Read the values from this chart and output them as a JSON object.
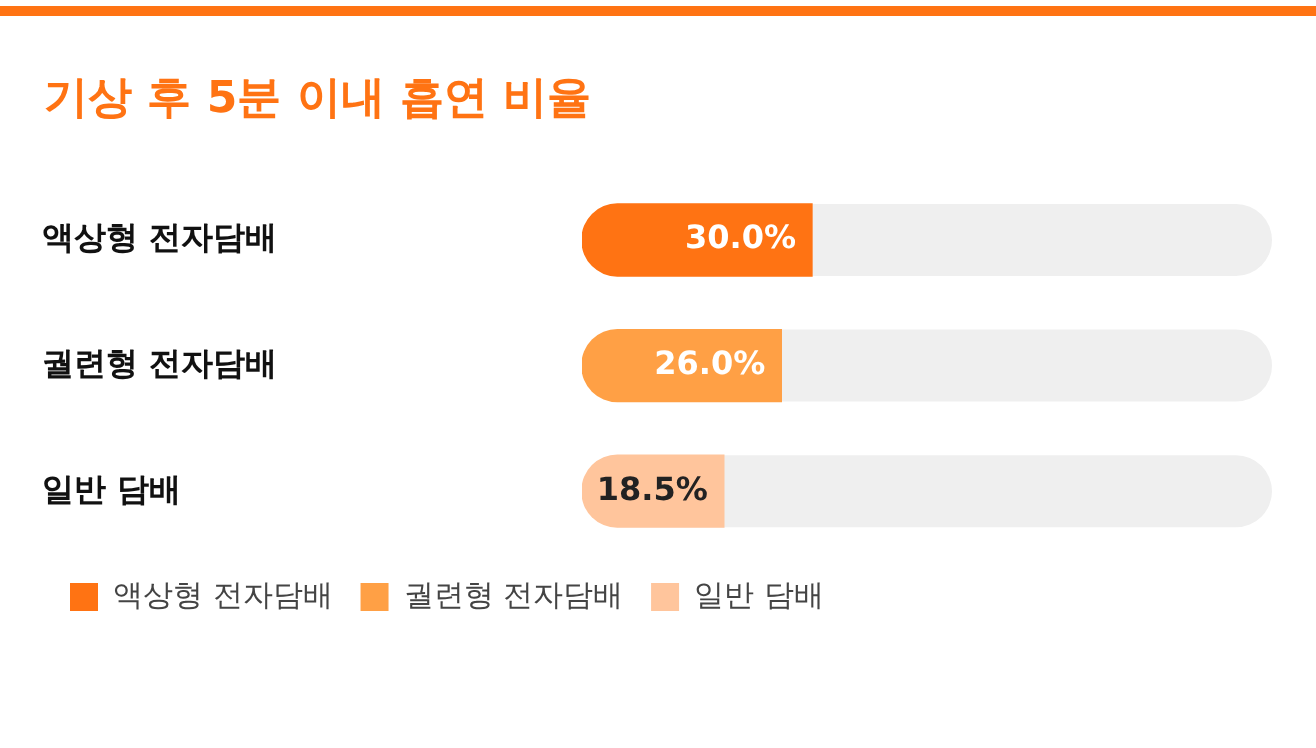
{
  "chart_data": {
    "type": "bar",
    "orientation": "horizontal",
    "title": "기상 후 5분 이내 흡연 비율",
    "categories": [
      "액상형 전자담배",
      "궐련형 전자담배",
      "일반 담배"
    ],
    "series": [
      {
        "name": "액상형 전자담배",
        "color": "#ff7313",
        "values": [
          30.0,
          null,
          null
        ],
        "value_labels": [
          "30.0%",
          null,
          null
        ]
      },
      {
        "name": "궐련형 전자담배",
        "color": "#ffa045",
        "values": [
          null,
          26.0,
          null
        ],
        "value_labels": [
          null,
          "26.0%",
          null
        ]
      },
      {
        "name": "일반 담배",
        "color": "#ffc59c",
        "values": [
          null,
          null,
          18.5
        ],
        "value_labels": [
          null,
          null,
          "18.5%"
        ]
      }
    ],
    "xlim": [
      0,
      90
    ],
    "tick_labels": "y",
    "legend": "bottom left"
  }
}
